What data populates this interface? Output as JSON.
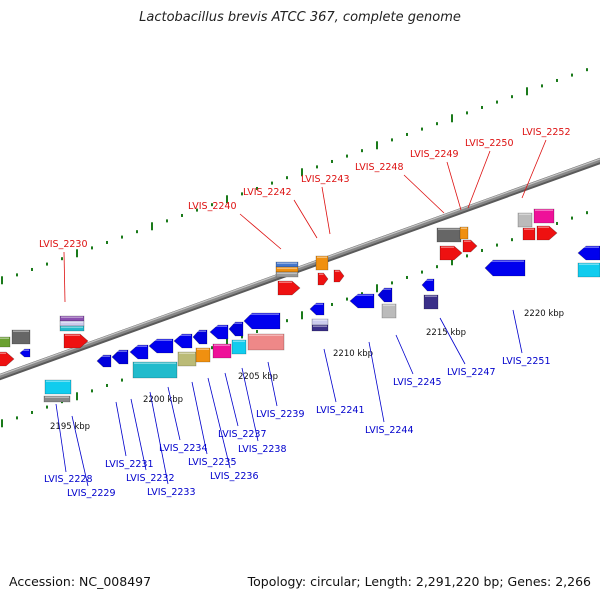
{
  "header": {
    "title": "Lactobacillus brevis ATCC 367, complete genome"
  },
  "footer": {
    "accession": "Accession: NC_008497",
    "summary": "Topology: circular; Length: 2,291,220 bp; Genes: 2,266"
  },
  "colors": {
    "forward_label": "#dd1111",
    "reverse_label": "#0000cc",
    "backbone": "#888888",
    "tick": "#1a7a1a"
  },
  "scale_ticks": [
    "2195 kbp",
    "2200 kbp",
    "2205 kbp",
    "2210 kbp",
    "2215 kbp",
    "2220 kbp"
  ],
  "forward_genes": [
    "LVIS_2230",
    "LVIS_2240",
    "LVIS_2242",
    "LVIS_2243",
    "LVIS_2248",
    "LVIS_2249",
    "LVIS_2250",
    "LVIS_2252"
  ],
  "reverse_genes": [
    "LVIS_2228",
    "LVIS_2229",
    "LVIS_2231",
    "LVIS_2232",
    "LVIS_2233",
    "LVIS_2234",
    "LVIS_2235",
    "LVIS_2236",
    "LVIS_2237",
    "LVIS_2238",
    "LVIS_2239",
    "LVIS_2241",
    "LVIS_2244",
    "LVIS_2245",
    "LVIS_2247",
    "LVIS_2251"
  ]
}
